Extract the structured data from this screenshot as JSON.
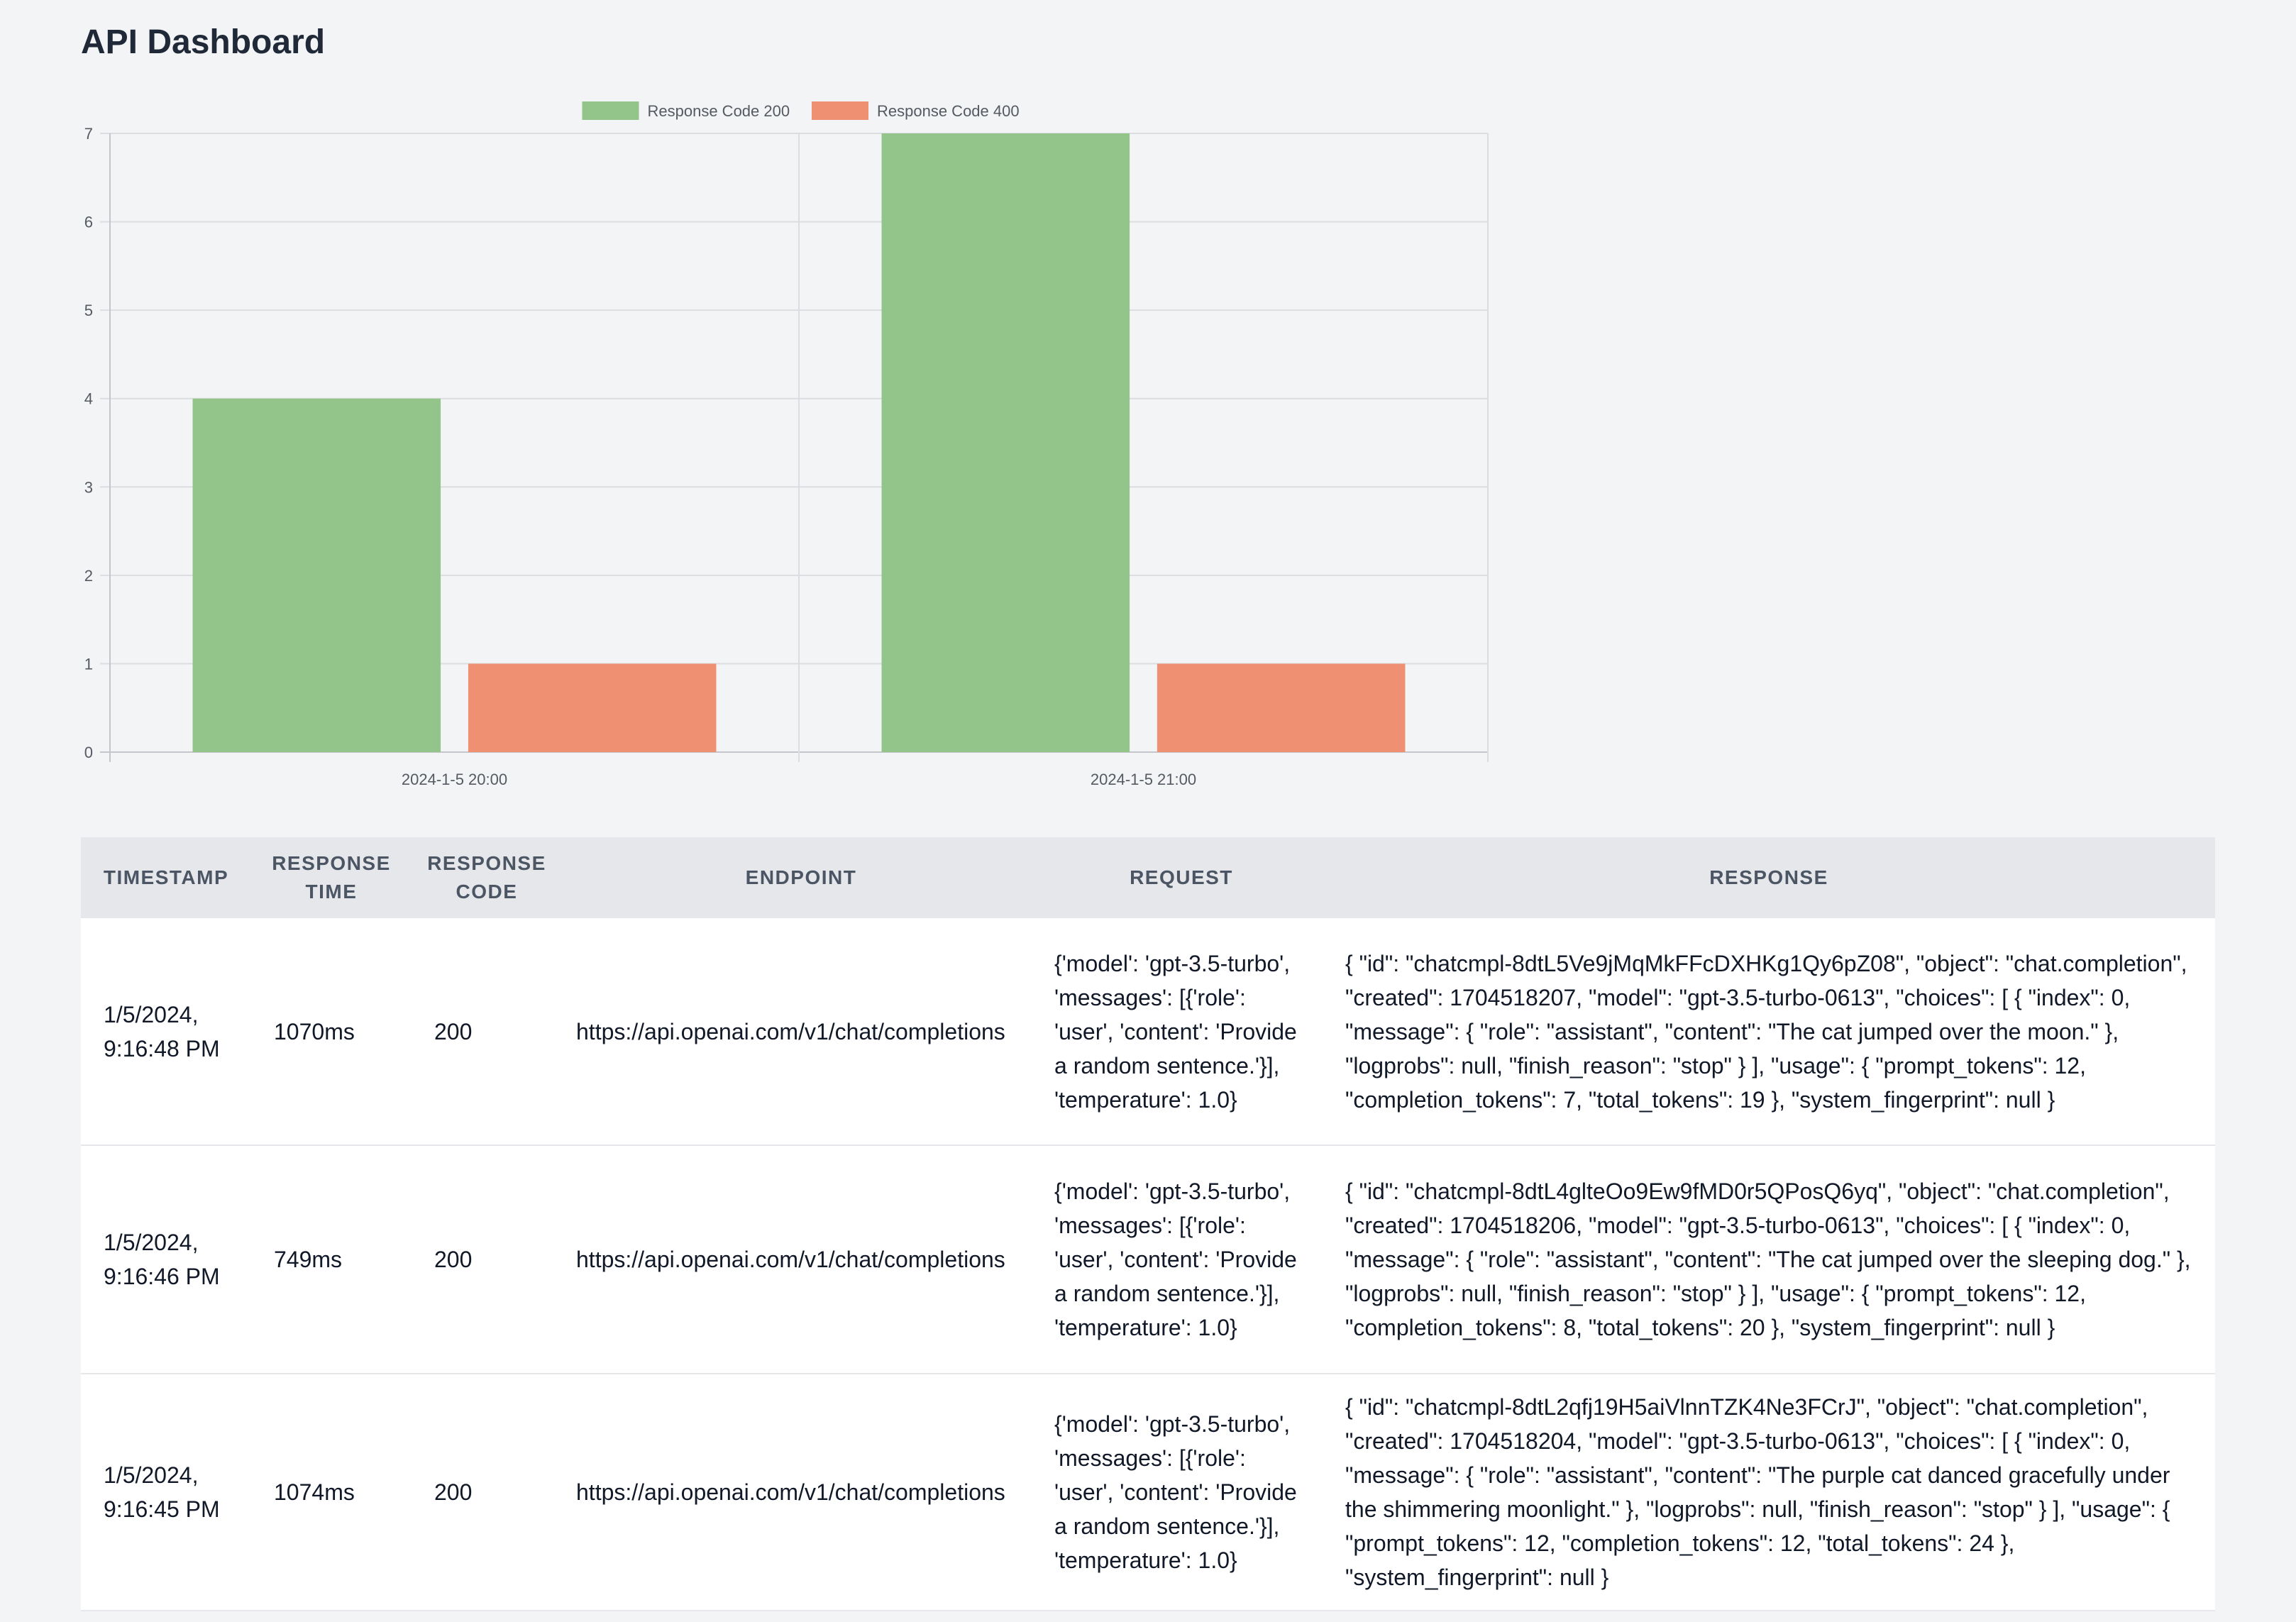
{
  "page": {
    "title": "API Dashboard"
  },
  "colors": {
    "success": "#93c489",
    "error": "#ef9073",
    "grid": "#dcdde0",
    "axis": "#c4c6cb",
    "tick_text": "#555a62",
    "background": "#f3f4f6"
  },
  "chart_data": {
    "type": "bar",
    "categories": [
      "2024-1-5 20:00",
      "2024-1-5 21:00"
    ],
    "series": [
      {
        "name": "Response Code 200",
        "values": [
          4,
          7
        ],
        "color": "#93c489"
      },
      {
        "name": "Response Code 400",
        "values": [
          1,
          1
        ],
        "color": "#ef9073"
      }
    ],
    "ylim": [
      0,
      7
    ],
    "yticks": [
      0,
      1,
      2,
      3,
      4,
      5,
      6,
      7
    ],
    "grid": true,
    "legend": "top-center",
    "title": "",
    "xlabel": "",
    "ylabel": ""
  },
  "table": {
    "headers": [
      {
        "line1": "TIMESTAMP",
        "line2": ""
      },
      {
        "line1": "RESPONSE",
        "line2": "TIME"
      },
      {
        "line1": "RESPONSE",
        "line2": "CODE"
      },
      {
        "line1": "ENDPOINT",
        "line2": ""
      },
      {
        "line1": "REQUEST",
        "line2": ""
      },
      {
        "line1": "RESPONSE",
        "line2": ""
      }
    ],
    "rows": [
      {
        "timestamp_date": "1/5/2024,",
        "timestamp_time": "9:16:48 PM",
        "response_time": "1070ms",
        "response_code": "200",
        "endpoint": "https://api.openai.com/v1/chat/completions",
        "request": "{'model': 'gpt-3.5-turbo', 'messages': [{'role': 'user', 'content': 'Provide a random sentence.'}], 'temperature': 1.0}",
        "response": "{ \"id\": \"chatcmpl-8dtL5Ve9jMqMkFFcDXHKg1Qy6pZ08\", \"object\": \"chat.completion\", \"created\": 1704518207, \"model\": \"gpt-3.5-turbo-0613\", \"choices\": [ { \"index\": 0, \"message\": { \"role\": \"assistant\", \"content\": \"The cat jumped over the moon.\" }, \"logprobs\": null, \"finish_reason\": \"stop\" } ], \"usage\": { \"prompt_tokens\": 12, \"completion_tokens\": 7, \"total_tokens\": 19 }, \"system_fingerprint\": null }"
      },
      {
        "timestamp_date": "1/5/2024,",
        "timestamp_time": "9:16:46 PM",
        "response_time": "749ms",
        "response_code": "200",
        "endpoint": "https://api.openai.com/v1/chat/completions",
        "request": "{'model': 'gpt-3.5-turbo', 'messages': [{'role': 'user', 'content': 'Provide a random sentence.'}], 'temperature': 1.0}",
        "response": "{ \"id\": \"chatcmpl-8dtL4glteOo9Ew9fMD0r5QPosQ6yq\", \"object\": \"chat.completion\", \"created\": 1704518206, \"model\": \"gpt-3.5-turbo-0613\", \"choices\": [ { \"index\": 0, \"message\": { \"role\": \"assistant\", \"content\": \"The cat jumped over the sleeping dog.\" }, \"logprobs\": null, \"finish_reason\": \"stop\" } ], \"usage\": { \"prompt_tokens\": 12, \"completion_tokens\": 8, \"total_tokens\": 20 }, \"system_fingerprint\": null }"
      },
      {
        "timestamp_date": "1/5/2024,",
        "timestamp_time": "9:16:45 PM",
        "response_time": "1074ms",
        "response_code": "200",
        "endpoint": "https://api.openai.com/v1/chat/completions",
        "request": "{'model': 'gpt-3.5-turbo', 'messages': [{'role': 'user', 'content': 'Provide a random sentence.'}], 'temperature': 1.0}",
        "response": "{ \"id\": \"chatcmpl-8dtL2qfj19H5aiVlnnTZK4Ne3FCrJ\", \"object\": \"chat.completion\", \"created\": 1704518204, \"model\": \"gpt-3.5-turbo-0613\", \"choices\": [ { \"index\": 0, \"message\": { \"role\": \"assistant\", \"content\": \"The purple cat danced gracefully under the shimmering moonlight.\" }, \"logprobs\": null, \"finish_reason\": \"stop\" } ], \"usage\": { \"prompt_tokens\": 12, \"completion_tokens\": 12, \"total_tokens\": 24 }, \"system_fingerprint\": null }"
      }
    ]
  }
}
